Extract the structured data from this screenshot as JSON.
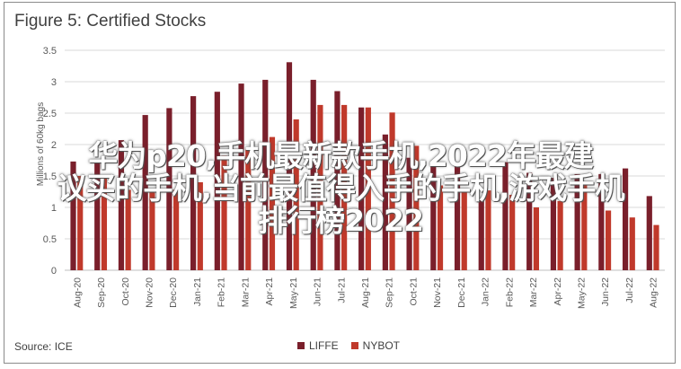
{
  "header": {
    "title": "Figure 5: Certified Stocks"
  },
  "footer": {
    "source": "Source: ICE"
  },
  "overlay_text": {
    "line1": "华为p20,手机最新款手机,2022年最建",
    "line2": "议买的手机,当前最值得入手的手机,游戏手机",
    "line3": "排行榜2022"
  },
  "colors": {
    "LIFFE": "#7a1f2b",
    "NYBOT": "#c0392b",
    "grid": "#d9d9d9",
    "text": "#595959"
  },
  "chart_data": {
    "type": "bar",
    "title": "Figure 5: Certified Stocks",
    "ylabel": "Millions of 60kg bags",
    "xlabel": "",
    "ylim": [
      0,
      3.5
    ],
    "yticks": [
      0,
      0.5,
      1,
      1.5,
      2,
      2.5,
      3,
      3.5
    ],
    "grid": true,
    "legend": "bottom",
    "categories": [
      "Aug-20",
      "Sep-20",
      "Oct-20",
      "Nov-20",
      "Dec-20",
      "Jan-21",
      "Feb-21",
      "Mar-21",
      "Apr-21",
      "May-21",
      "Jun-21",
      "Jul-21",
      "Aug-21",
      "Sep-21",
      "Oct-21",
      "Nov-21",
      "Dec-21",
      "Jan-22",
      "Feb-22",
      "Mar-22",
      "Apr-22",
      "May-22",
      "Jun-22",
      "Jul-22",
      "Aug-22"
    ],
    "series": [
      {
        "name": "LIFFE",
        "values": [
          1.73,
          1.7,
          2.07,
          2.47,
          2.58,
          2.77,
          2.84,
          2.97,
          3.03,
          3.31,
          3.03,
          2.85,
          2.59,
          2.16,
          1.79,
          1.72,
          1.65,
          1.13,
          1.72,
          1.55,
          1.47,
          1.53,
          1.53,
          1.62,
          1.18
        ]
      },
      {
        "name": "NYBOT",
        "values": [
          1.5,
          1.5,
          1.28,
          1.28,
          1.28,
          1.4,
          1.82,
          1.93,
          2.12,
          2.4,
          2.63,
          2.63,
          2.59,
          2.51,
          1.98,
          1.35,
          1.25,
          1.27,
          1.2,
          1.0,
          1.1,
          1.38,
          0.95,
          0.84,
          0.72
        ]
      }
    ]
  }
}
